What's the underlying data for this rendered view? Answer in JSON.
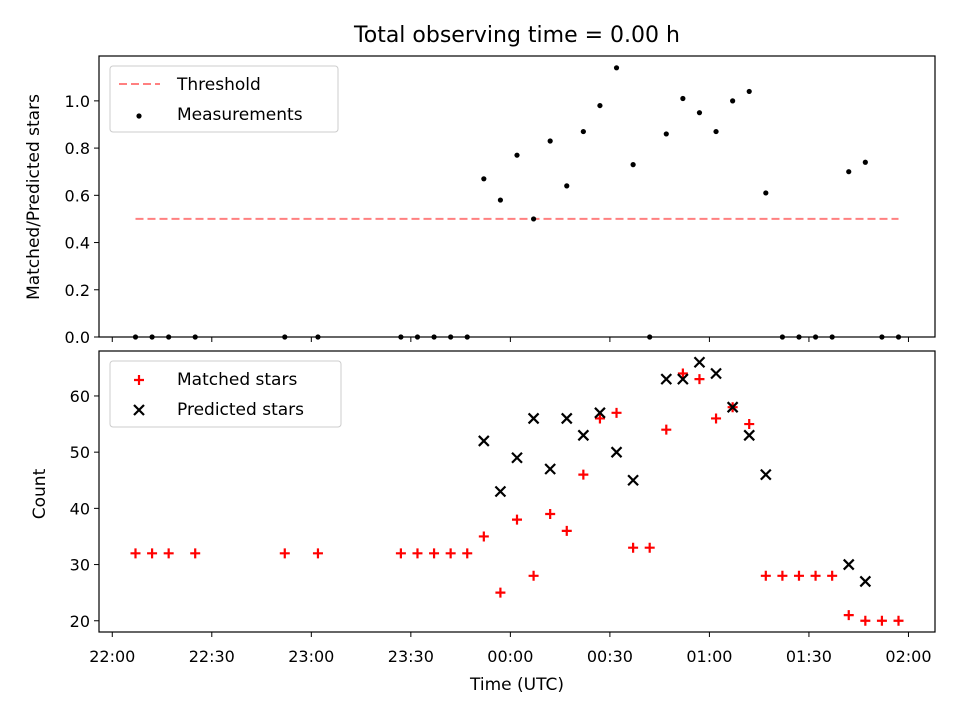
{
  "chart_data": [
    {
      "type": "scatter",
      "title": "Total observing time = 0.00 h",
      "xlabel": "",
      "ylabel": "Matched/Predicted stars",
      "xlim": [
        "21:56",
        "02:08"
      ],
      "ylim": [
        0,
        1.19
      ],
      "yticks": [
        0.0,
        0.2,
        0.4,
        0.6,
        0.8,
        1.0
      ],
      "ytick_labels": [
        "0.0",
        "0.2",
        "0.4",
        "0.6",
        "0.8",
        "1.0"
      ],
      "grid": false,
      "legend": "top-left",
      "series": [
        {
          "name": "Threshold",
          "kind": "dashed-line",
          "color": "#ff8080",
          "x": [
            "22:07",
            "01:57"
          ],
          "y": [
            0.5,
            0.5
          ]
        },
        {
          "name": "Measurements",
          "kind": "dot",
          "color": "#000000",
          "points": [
            [
              "22:07",
              0.0
            ],
            [
              "22:12",
              0.0
            ],
            [
              "22:17",
              0.0
            ],
            [
              "22:25",
              0.0
            ],
            [
              "22:52",
              0.0
            ],
            [
              "23:02",
              0.0
            ],
            [
              "23:27",
              0.0
            ],
            [
              "23:32",
              0.0
            ],
            [
              "23:37",
              0.0
            ],
            [
              "23:42",
              0.0
            ],
            [
              "23:47",
              0.0
            ],
            [
              "23:52",
              0.67
            ],
            [
              "23:57",
              0.58
            ],
            [
              "00:02",
              0.77
            ],
            [
              "00:07",
              0.5
            ],
            [
              "00:12",
              0.83
            ],
            [
              "00:17",
              0.64
            ],
            [
              "00:22",
              0.87
            ],
            [
              "00:27",
              0.98
            ],
            [
              "00:32",
              1.14
            ],
            [
              "00:37",
              0.73
            ],
            [
              "00:42",
              0.0
            ],
            [
              "00:47",
              0.86
            ],
            [
              "00:52",
              1.01
            ],
            [
              "00:57",
              0.95
            ],
            [
              "01:02",
              0.87
            ],
            [
              "01:07",
              1.0
            ],
            [
              "01:12",
              1.04
            ],
            [
              "01:17",
              0.61
            ],
            [
              "01:22",
              0.0
            ],
            [
              "01:27",
              0.0
            ],
            [
              "01:32",
              0.0
            ],
            [
              "01:37",
              0.0
            ],
            [
              "01:42",
              0.7
            ],
            [
              "01:47",
              0.74
            ],
            [
              "01:52",
              0.0
            ],
            [
              "01:57",
              0.0
            ]
          ]
        }
      ]
    },
    {
      "type": "scatter",
      "title": "",
      "xlabel": "Time (UTC)",
      "ylabel": "Count",
      "xlim": [
        "21:56",
        "02:08"
      ],
      "ylim": [
        18,
        68
      ],
      "yticks": [
        20,
        30,
        40,
        50,
        60
      ],
      "ytick_labels": [
        "20",
        "30",
        "40",
        "50",
        "60"
      ],
      "xticks": [
        "22:00",
        "22:30",
        "23:00",
        "23:30",
        "00:00",
        "00:30",
        "01:00",
        "01:30",
        "02:00"
      ],
      "xtick_labels": [
        "22:00",
        "22:30",
        "23:00",
        "23:30",
        "00:00",
        "00:30",
        "01:00",
        "01:30",
        "02:00"
      ],
      "grid": false,
      "legend": "top-left",
      "series": [
        {
          "name": "Matched stars",
          "marker": "plus",
          "color": "#ff0000",
          "points": [
            [
              "22:07",
              32
            ],
            [
              "22:12",
              32
            ],
            [
              "22:17",
              32
            ],
            [
              "22:25",
              32
            ],
            [
              "22:52",
              32
            ],
            [
              "23:02",
              32
            ],
            [
              "23:27",
              32
            ],
            [
              "23:32",
              32
            ],
            [
              "23:37",
              32
            ],
            [
              "23:42",
              32
            ],
            [
              "23:47",
              32
            ],
            [
              "23:52",
              35
            ],
            [
              "23:57",
              25
            ],
            [
              "00:02",
              38
            ],
            [
              "00:07",
              28
            ],
            [
              "00:12",
              39
            ],
            [
              "00:17",
              36
            ],
            [
              "00:22",
              46
            ],
            [
              "00:27",
              56
            ],
            [
              "00:32",
              57
            ],
            [
              "00:37",
              33
            ],
            [
              "00:42",
              33
            ],
            [
              "00:47",
              54
            ],
            [
              "00:52",
              64
            ],
            [
              "00:57",
              63
            ],
            [
              "01:02",
              56
            ],
            [
              "01:07",
              58
            ],
            [
              "01:12",
              55
            ],
            [
              "01:17",
              28
            ],
            [
              "01:22",
              28
            ],
            [
              "01:27",
              28
            ],
            [
              "01:32",
              28
            ],
            [
              "01:37",
              28
            ],
            [
              "01:42",
              21
            ],
            [
              "01:47",
              20
            ],
            [
              "01:52",
              20
            ],
            [
              "01:57",
              20
            ]
          ]
        },
        {
          "name": "Predicted stars",
          "marker": "x",
          "color": "#000000",
          "points": [
            [
              "23:52",
              52
            ],
            [
              "23:57",
              43
            ],
            [
              "00:02",
              49
            ],
            [
              "00:07",
              56
            ],
            [
              "00:12",
              47
            ],
            [
              "00:17",
              56
            ],
            [
              "00:22",
              53
            ],
            [
              "00:27",
              57
            ],
            [
              "00:32",
              50
            ],
            [
              "00:37",
              45
            ],
            [
              "00:47",
              63
            ],
            [
              "00:52",
              63
            ],
            [
              "00:57",
              66
            ],
            [
              "01:02",
              64
            ],
            [
              "01:07",
              58
            ],
            [
              "01:12",
              53
            ],
            [
              "01:17",
              46
            ],
            [
              "01:42",
              30
            ],
            [
              "01:47",
              27
            ]
          ]
        }
      ]
    }
  ]
}
